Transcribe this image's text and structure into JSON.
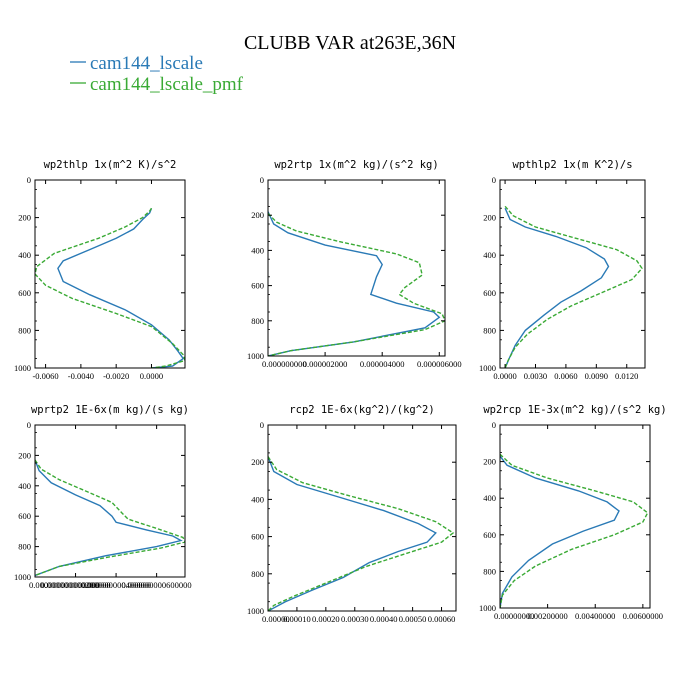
{
  "figure": {
    "title": "CLUBB VAR at263E,36N",
    "legend": [
      {
        "name": "cam144_lscale",
        "color": "#2a7ab6",
        "dash": "solid"
      },
      {
        "name": "cam144_lscale_pmf",
        "color": "#3aaa35",
        "dash": "dashed"
      }
    ]
  },
  "chart_data": [
    {
      "type": "line",
      "title": "wp2thlp  1x(m^2 K)/s^2",
      "xlim": [
        -0.0066,
        0.0019
      ],
      "ylim": [
        1000,
        0
      ],
      "xticks": [
        "-0.0060",
        "-0.0040",
        "-0.0020",
        "0.0000"
      ],
      "xtick_values": [
        -0.006,
        -0.004,
        -0.002,
        0.0
      ],
      "yticks": [
        "0",
        "200",
        "400",
        "600",
        "800",
        "1000"
      ],
      "ytick_values": [
        0,
        200,
        400,
        600,
        800,
        1000
      ],
      "series": [
        {
          "name": "cam144_lscale",
          "values": [
            [
              0.0,
              150
            ],
            [
              -0.0001,
              175
            ],
            [
              -0.0005,
              210
            ],
            [
              -0.001,
              260
            ],
            [
              -0.002,
              310
            ],
            [
              -0.0035,
              370
            ],
            [
              -0.005,
              430
            ],
            [
              -0.0053,
              470
            ],
            [
              -0.005,
              540
            ],
            [
              -0.0035,
              610
            ],
            [
              -0.0015,
              690
            ],
            [
              0.0,
              770
            ],
            [
              0.001,
              850
            ],
            [
              0.0015,
              910
            ],
            [
              0.0018,
              950
            ],
            [
              0.0012,
              990
            ],
            [
              0.0,
              1000
            ]
          ]
        },
        {
          "name": "cam144_lscale_pmf",
          "values": [
            [
              0.0,
              150
            ],
            [
              -0.0001,
              165
            ],
            [
              -0.0005,
              200
            ],
            [
              -0.0015,
              250
            ],
            [
              -0.003,
              310
            ],
            [
              -0.0055,
              390
            ],
            [
              -0.0065,
              460
            ],
            [
              -0.0066,
              500
            ],
            [
              -0.006,
              560
            ],
            [
              -0.0045,
              630
            ],
            [
              -0.002,
              710
            ],
            [
              0.0,
              780
            ],
            [
              0.0012,
              870
            ],
            [
              0.0018,
              930
            ],
            [
              0.0019,
              960
            ],
            [
              0.0008,
              990
            ],
            [
              0.0,
              1000
            ]
          ]
        }
      ]
    },
    {
      "type": "line",
      "title": "wp2rtp  1x(m^2 kg)/(s^2 kg)",
      "xlim": [
        0.0,
        6.2e-06
      ],
      "ylim": [
        1000,
        0
      ],
      "xticks": [
        "0.000000000",
        "0.000002000",
        "0.000004000",
        "0.000006000"
      ],
      "xtick_values": [
        0.0,
        2e-06,
        4e-06,
        6e-06
      ],
      "yticks": [
        "0",
        "200",
        "400",
        "600",
        "800",
        "1000"
      ],
      "ytick_values": [
        0,
        200,
        400,
        600,
        800,
        1000
      ],
      "series": [
        {
          "name": "cam144_lscale",
          "values": [
            [
              0.0,
              180
            ],
            [
              2e-07,
              250
            ],
            [
              7e-07,
              300
            ],
            [
              2e-06,
              370
            ],
            [
              3.8e-06,
              430
            ],
            [
              4e-06,
              480
            ],
            [
              3.8e-06,
              550
            ],
            [
              3.6e-06,
              650
            ],
            [
              4.5e-06,
              700
            ],
            [
              5.8e-06,
              750
            ],
            [
              6e-06,
              780
            ],
            [
              5.5e-06,
              840
            ],
            [
              3e-06,
              920
            ],
            [
              8e-07,
              970
            ],
            [
              0.0,
              1000
            ]
          ]
        },
        {
          "name": "cam144_lscale_pmf",
          "values": [
            [
              0.0,
              190
            ],
            [
              3e-07,
              240
            ],
            [
              1e-06,
              290
            ],
            [
              2.5e-06,
              350
            ],
            [
              4.5e-06,
              420
            ],
            [
              5.3e-06,
              470
            ],
            [
              5.4e-06,
              540
            ],
            [
              4.8e-06,
              610
            ],
            [
              4.6e-06,
              650
            ],
            [
              5.1e-06,
              700
            ],
            [
              6.1e-06,
              760
            ],
            [
              6.2e-06,
              800
            ],
            [
              5.5e-06,
              850
            ],
            [
              3e-06,
              920
            ],
            [
              8e-07,
              970
            ],
            [
              0.0,
              1000
            ]
          ]
        }
      ]
    },
    {
      "type": "line",
      "title": "wpthlp2  1x(m K^2)/s",
      "xlim": [
        -0.0005,
        0.0138
      ],
      "ylim": [
        1000,
        0
      ],
      "xticks": [
        "0.0000",
        "0.0030",
        "0.0060",
        "0.0090",
        "0.0120"
      ],
      "xtick_values": [
        0.0,
        0.003,
        0.006,
        0.009,
        0.012
      ],
      "yticks": [
        "0",
        "200",
        "400",
        "600",
        "800",
        "1000"
      ],
      "ytick_values": [
        0,
        200,
        400,
        600,
        800,
        1000
      ],
      "series": [
        {
          "name": "cam144_lscale",
          "values": [
            [
              0.0,
              150
            ],
            [
              0.0005,
              210
            ],
            [
              0.002,
              250
            ],
            [
              0.005,
              300
            ],
            [
              0.008,
              360
            ],
            [
              0.0098,
              420
            ],
            [
              0.0102,
              460
            ],
            [
              0.0095,
              520
            ],
            [
              0.0075,
              590
            ],
            [
              0.0055,
              650
            ],
            [
              0.0038,
              720
            ],
            [
              0.002,
              800
            ],
            [
              0.001,
              880
            ],
            [
              0.0004,
              950
            ],
            [
              0.0,
              1000
            ]
          ]
        },
        {
          "name": "cam144_lscale_pmf",
          "values": [
            [
              0.0,
              140
            ],
            [
              0.0008,
              190
            ],
            [
              0.003,
              250
            ],
            [
              0.007,
              310
            ],
            [
              0.011,
              370
            ],
            [
              0.013,
              430
            ],
            [
              0.0135,
              470
            ],
            [
              0.0125,
              530
            ],
            [
              0.0095,
              600
            ],
            [
              0.0065,
              670
            ],
            [
              0.0042,
              740
            ],
            [
              0.0022,
              820
            ],
            [
              0.001,
              890
            ],
            [
              0.0003,
              960
            ],
            [
              0.0,
              1000
            ]
          ]
        }
      ]
    },
    {
      "type": "line",
      "title": "wprtp2  1E-6x(m kg)/(s kg)",
      "xlim": [
        0.0,
        7.4e-10
      ],
      "ylim": [
        1000,
        0
      ],
      "xticks": [
        "0.000000000000000",
        "0.000000000200000",
        "0.000000000400000",
        "0.000000000600000"
      ],
      "xtick_values": [
        0.0,
        2e-10,
        4e-10,
        6e-10
      ],
      "yticks": [
        "0",
        "200",
        "400",
        "600",
        "800",
        "1000"
      ],
      "ytick_values": [
        0,
        200,
        400,
        600,
        800,
        1000
      ],
      "series": [
        {
          "name": "cam144_lscale",
          "values": [
            [
              0.0,
              230
            ],
            [
              2e-11,
              300
            ],
            [
              8e-11,
              380
            ],
            [
              2e-10,
              460
            ],
            [
              3.2e-10,
              530
            ],
            [
              3.8e-10,
              600
            ],
            [
              4e-10,
              640
            ],
            [
              5.5e-10,
              690
            ],
            [
              6.8e-10,
              730
            ],
            [
              7.2e-10,
              760
            ],
            [
              6e-10,
              800
            ],
            [
              3.5e-10,
              860
            ],
            [
              1.2e-10,
              930
            ],
            [
              0.0,
              990
            ]
          ]
        },
        {
          "name": "cam144_lscale_pmf",
          "values": [
            [
              0.0,
              230
            ],
            [
              3e-11,
              290
            ],
            [
              1.2e-10,
              360
            ],
            [
              2.6e-10,
              440
            ],
            [
              3.8e-10,
              510
            ],
            [
              4.3e-10,
              580
            ],
            [
              4.6e-10,
              620
            ],
            [
              6e-10,
              680
            ],
            [
              7.3e-10,
              740
            ],
            [
              7.4e-10,
              770
            ],
            [
              6.2e-10,
              810
            ],
            [
              3.6e-10,
              870
            ],
            [
              1.2e-10,
              930
            ],
            [
              0.0,
              990
            ]
          ]
        }
      ]
    },
    {
      "type": "line",
      "title": "rcp2  1E-6x(kg^2)/(kg^2)",
      "xlim": [
        0.0,
        0.00065
      ],
      "ylim": [
        1000,
        0
      ],
      "xticks": [
        "0.00000",
        "0.00010",
        "0.00020",
        "0.00030",
        "0.00040",
        "0.00050",
        "0.00060"
      ],
      "xtick_values": [
        0.0,
        0.0001,
        0.0002,
        0.0003,
        0.0004,
        0.0005,
        0.0006
      ],
      "yticks": [
        "0",
        "200",
        "400",
        "600",
        "800",
        "1000"
      ],
      "ytick_values": [
        0,
        200,
        400,
        600,
        800,
        1000
      ],
      "series": [
        {
          "name": "cam144_lscale",
          "values": [
            [
              0.0,
              170
            ],
            [
              2e-05,
              250
            ],
            [
              0.0001,
              320
            ],
            [
              0.00025,
              390
            ],
            [
              0.0004,
              460
            ],
            [
              0.00052,
              530
            ],
            [
              0.00058,
              580
            ],
            [
              0.00055,
              630
            ],
            [
              0.00045,
              680
            ],
            [
              0.00035,
              740
            ],
            [
              0.00026,
              820
            ],
            [
              0.00015,
              890
            ],
            [
              6e-05,
              950
            ],
            [
              0.0,
              1000
            ]
          ]
        },
        {
          "name": "cam144_lscale_pmf",
          "values": [
            [
              0.0,
              170
            ],
            [
              3e-05,
              240
            ],
            [
              0.00012,
              310
            ],
            [
              0.00028,
              380
            ],
            [
              0.00045,
              450
            ],
            [
              0.00058,
              520
            ],
            [
              0.00064,
              580
            ],
            [
              0.0006,
              630
            ],
            [
              0.00048,
              690
            ],
            [
              0.00034,
              760
            ],
            [
              0.0002,
              850
            ],
            [
              9e-05,
              920
            ],
            [
              2e-05,
              970
            ],
            [
              0.0,
              1000
            ]
          ]
        }
      ]
    },
    {
      "type": "line",
      "title": "wp2rcp  1E-3x(m^2 kg)/(s^2 kg)",
      "xlim": [
        0.0,
        0.0063
      ],
      "ylim": [
        1000,
        0
      ],
      "xticks": [
        "0.00000000",
        "0.00200000",
        "0.00400000",
        "0.00600000"
      ],
      "xtick_values": [
        0.0,
        0.002,
        0.004,
        0.006
      ],
      "yticks": [
        "0",
        "200",
        "400",
        "600",
        "800",
        "1000"
      ],
      "ytick_values": [
        0,
        200,
        400,
        600,
        800,
        1000
      ],
      "series": [
        {
          "name": "cam144_lscale",
          "values": [
            [
              0.0,
              170
            ],
            [
              0.0003,
              220
            ],
            [
              0.0015,
              290
            ],
            [
              0.0033,
              360
            ],
            [
              0.0045,
              420
            ],
            [
              0.005,
              470
            ],
            [
              0.0048,
              520
            ],
            [
              0.0035,
              580
            ],
            [
              0.0022,
              650
            ],
            [
              0.0012,
              740
            ],
            [
              0.0005,
              830
            ],
            [
              0.0001,
              920
            ],
            [
              0.0,
              1000
            ]
          ]
        },
        {
          "name": "cam144_lscale_pmf",
          "values": [
            [
              0.0,
              160
            ],
            [
              0.0005,
              220
            ],
            [
              0.002,
              290
            ],
            [
              0.004,
              360
            ],
            [
              0.0056,
              420
            ],
            [
              0.0062,
              480
            ],
            [
              0.006,
              530
            ],
            [
              0.0048,
              600
            ],
            [
              0.003,
              680
            ],
            [
              0.0015,
              770
            ],
            [
              0.0006,
              850
            ],
            [
              0.0001,
              930
            ],
            [
              0.0,
              1000
            ]
          ]
        }
      ]
    }
  ]
}
